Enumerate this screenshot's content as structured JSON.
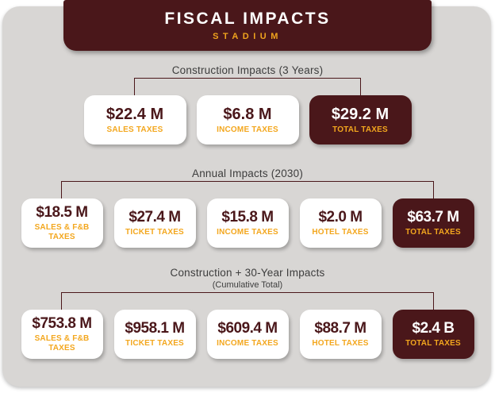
{
  "colors": {
    "maroon": "#4a171a",
    "gold": "#f3a71e",
    "panel_gray": "#d8d6d4",
    "title_gray": "#3d3d3d",
    "white": "#ffffff"
  },
  "header": {
    "title": "FISCAL IMPACTS",
    "subtitle": "STADIUM"
  },
  "sections": [
    {
      "title": "Construction Impacts (3 Years)",
      "subtitle": "",
      "cards": [
        {
          "value": "$22.4 M",
          "label": "SALES TAXES",
          "dark": false
        },
        {
          "value": "$6.8 M",
          "label": "INCOME TAXES",
          "dark": false
        },
        {
          "value": "$29.2 M",
          "label": "TOTAL TAXES",
          "dark": true
        }
      ]
    },
    {
      "title": "Annual Impacts (2030)",
      "subtitle": "",
      "cards": [
        {
          "value": "$18.5 M",
          "label": "SALES & F&B TAXES",
          "dark": false
        },
        {
          "value": "$27.4 M",
          "label": "TICKET TAXES",
          "dark": false
        },
        {
          "value": "$15.8 M",
          "label": "INCOME TAXES",
          "dark": false
        },
        {
          "value": "$2.0 M",
          "label": "HOTEL TAXES",
          "dark": false
        },
        {
          "value": "$63.7 M",
          "label": "TOTAL TAXES",
          "dark": true
        }
      ]
    },
    {
      "title": "Construction + 30-Year Impacts",
      "subtitle": "(Cumulative Total)",
      "cards": [
        {
          "value": "$753.8 M",
          "label": "SALES & F&B TAXES",
          "dark": false
        },
        {
          "value": "$958.1 M",
          "label": "TICKET TAXES",
          "dark": false
        },
        {
          "value": "$609.4 M",
          "label": "INCOME TAXES",
          "dark": false
        },
        {
          "value": "$88.7 M",
          "label": "HOTEL TAXES",
          "dark": false
        },
        {
          "value": "$2.4 B",
          "label": "TOTAL TAXES",
          "dark": true
        }
      ]
    }
  ]
}
